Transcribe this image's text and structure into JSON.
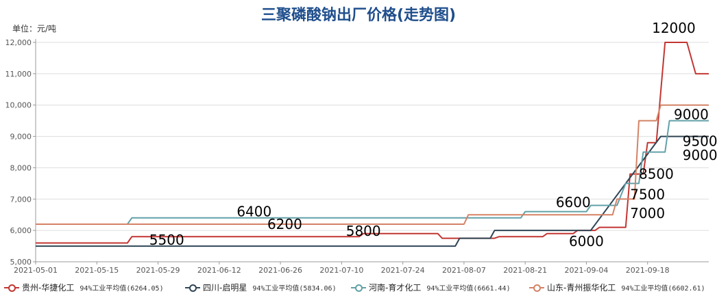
{
  "chart_data": {
    "type": "line",
    "title": "三聚磷酸钠出厂价格(走势图)",
    "unit_label": "单位：元/吨",
    "x_ticks": [
      "2021-05-01",
      "2021-05-15",
      "2021-05-29",
      "2021-06-12",
      "2021-06-26",
      "2021-07-10",
      "2021-07-24",
      "2021-08-07",
      "2021-08-21",
      "2021-09-04",
      "2021-09-18"
    ],
    "y_ticks": [
      "5,000",
      "6,000",
      "7,000",
      "8,000",
      "9,000",
      "10,000",
      "11,000",
      "12,000"
    ],
    "xlim": [
      "2021-05-01",
      "2021-10-02"
    ],
    "ylim": [
      5000,
      12000
    ],
    "grid": "horizontal",
    "legend_position": "bottom",
    "series": [
      {
        "name": "贵州-华捷化工",
        "color": "#c23531",
        "stat": "94%工业平均值(6264.05)",
        "points": [
          [
            "2021-05-01",
            5600
          ],
          [
            "2021-05-22",
            5600
          ],
          [
            "2021-05-23",
            5800
          ],
          [
            "2021-07-14",
            5800
          ],
          [
            "2021-07-15",
            5900
          ],
          [
            "2021-08-01",
            5900
          ],
          [
            "2021-08-02",
            5750
          ],
          [
            "2021-08-14",
            5750
          ],
          [
            "2021-08-15",
            5800
          ],
          [
            "2021-08-25",
            5800
          ],
          [
            "2021-08-26",
            5900
          ],
          [
            "2021-09-01",
            5900
          ],
          [
            "2021-09-02",
            6000
          ],
          [
            "2021-09-06",
            6000
          ],
          [
            "2021-09-07",
            6100
          ],
          [
            "2021-09-13",
            6100
          ],
          [
            "2021-09-14",
            7800
          ],
          [
            "2021-09-17",
            7800
          ],
          [
            "2021-09-18",
            8800
          ],
          [
            "2021-09-20",
            8800
          ],
          [
            "2021-09-22",
            12000
          ],
          [
            "2021-09-27",
            12000
          ],
          [
            "2021-09-29",
            11000
          ],
          [
            "2021-10-02",
            11000
          ]
        ]
      },
      {
        "name": "四川-启明星",
        "color": "#2f4554",
        "stat": "94%工业平均值(5834.06)",
        "points": [
          [
            "2021-05-01",
            5500
          ],
          [
            "2021-08-05",
            5500
          ],
          [
            "2021-08-06",
            5750
          ],
          [
            "2021-08-13",
            5750
          ],
          [
            "2021-08-14",
            6000
          ],
          [
            "2021-09-05",
            6000
          ],
          [
            "2021-09-21",
            9000
          ],
          [
            "2021-10-02",
            9000
          ]
        ]
      },
      {
        "name": "河南-育才化工",
        "color": "#61a0a8",
        "stat": "94%工业平均值(6661.44)",
        "points": [
          [
            "2021-05-01",
            6200
          ],
          [
            "2021-05-22",
            6200
          ],
          [
            "2021-05-23",
            6400
          ],
          [
            "2021-08-07",
            6400
          ],
          [
            "2021-08-08",
            6400
          ],
          [
            "2021-08-20",
            6400
          ],
          [
            "2021-08-21",
            6600
          ],
          [
            "2021-09-04",
            6600
          ],
          [
            "2021-09-05",
            6800
          ],
          [
            "2021-09-11",
            6800
          ],
          [
            "2021-09-13",
            7500
          ],
          [
            "2021-09-16",
            7500
          ],
          [
            "2021-09-17",
            8500
          ],
          [
            "2021-09-22",
            8500
          ],
          [
            "2021-09-23",
            9500
          ],
          [
            "2021-10-02",
            9500
          ]
        ]
      },
      {
        "name": "山东-青州振华化工",
        "color": "#d48265",
        "stat": "94%工业平均值(6602.61)",
        "points": [
          [
            "2021-05-01",
            6200
          ],
          [
            "2021-08-07",
            6200
          ],
          [
            "2021-08-08",
            6500
          ],
          [
            "2021-09-10",
            6500
          ],
          [
            "2021-09-11",
            7000
          ],
          [
            "2021-09-15",
            7000
          ],
          [
            "2021-09-16",
            9500
          ],
          [
            "2021-09-20",
            9500
          ],
          [
            "2021-09-21",
            10000
          ],
          [
            "2021-10-02",
            10000
          ]
        ]
      }
    ],
    "annotations": [
      {
        "text": "12000",
        "x": "2021-09-19",
        "y": 12300
      },
      {
        "text": "9000",
        "x": "2021-09-24",
        "y": 9550
      },
      {
        "text": "9500",
        "x": "2021-09-26",
        "y": 8700
      },
      {
        "text": "9000",
        "x": "2021-09-26",
        "y": 8250
      },
      {
        "text": "8500",
        "x": "2021-09-16",
        "y": 7650
      },
      {
        "text": "7500",
        "x": "2021-09-14",
        "y": 7000
      },
      {
        "text": "7000",
        "x": "2021-09-14",
        "y": 6400
      },
      {
        "text": "6600",
        "x": "2021-08-28",
        "y": 6750
      },
      {
        "text": "6000",
        "x": "2021-08-31",
        "y": 5500
      },
      {
        "text": "6400",
        "x": "2021-06-16",
        "y": 6450
      },
      {
        "text": "6200",
        "x": "2021-06-23",
        "y": 6050
      },
      {
        "text": "5800",
        "x": "2021-07-11",
        "y": 5830
      },
      {
        "text": "5500",
        "x": "2021-05-27",
        "y": 5550
      }
    ]
  }
}
